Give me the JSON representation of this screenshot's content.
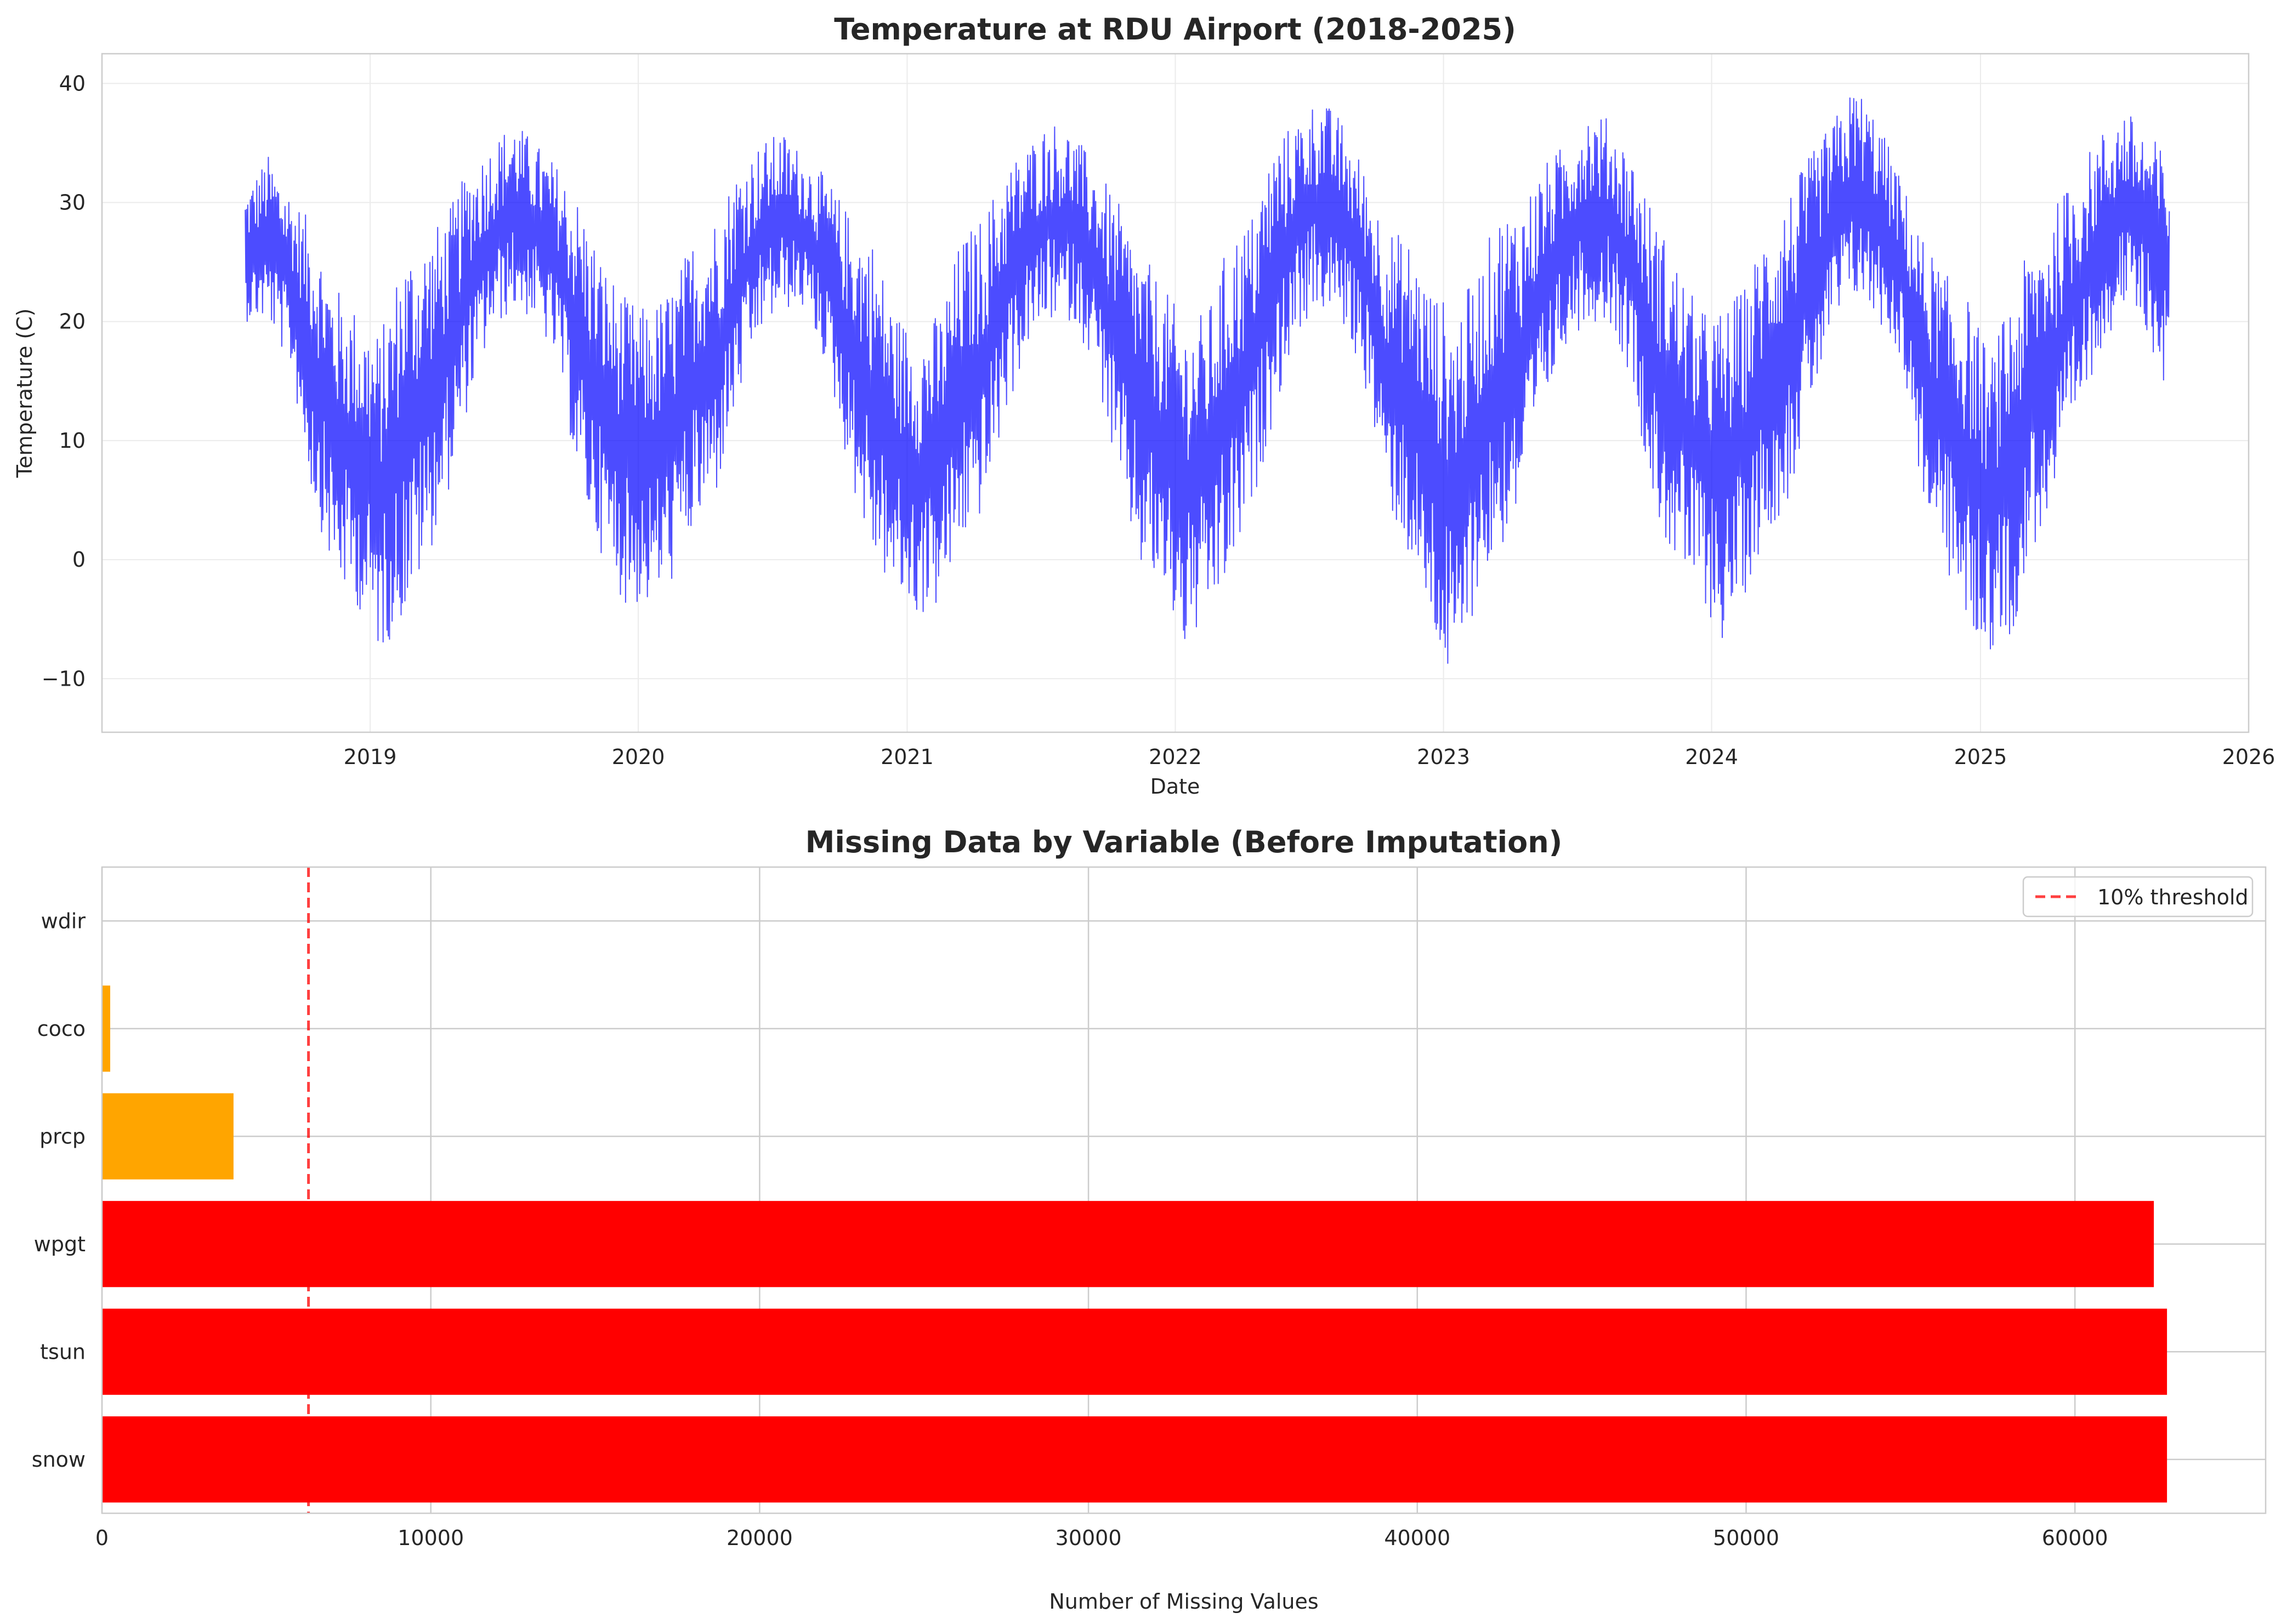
{
  "chart_data": [
    {
      "type": "line",
      "title": "Temperature at RDU Airport (2018-2025)",
      "xlabel": "Date",
      "ylabel": "Temperature (C)",
      "x_range": [
        "2018-01-01",
        "2026-01-01"
      ],
      "x_ticks": [
        "2019",
        "2020",
        "2021",
        "2022",
        "2023",
        "2024",
        "2025",
        "2026"
      ],
      "ylim": [
        -14.5,
        42.5
      ],
      "y_ticks": [
        -10,
        0,
        10,
        20,
        30,
        40
      ],
      "y_tick_labels": [
        "−10",
        "0",
        "10",
        "20",
        "30",
        "40"
      ],
      "grid": true,
      "series": [
        {
          "color": "#0000ff",
          "x": [
            "2018-07-15",
            "2018-08-15",
            "2018-09-15",
            "2018-10-15",
            "2018-11-15",
            "2018-12-15",
            "2019-01-15",
            "2019-02-15",
            "2019-03-15",
            "2019-04-15",
            "2019-05-15",
            "2019-06-15",
            "2019-07-15",
            "2019-08-15",
            "2019-09-15",
            "2019-10-15",
            "2019-11-15",
            "2019-12-15",
            "2020-01-15",
            "2020-02-15",
            "2020-03-15",
            "2020-04-15",
            "2020-05-15",
            "2020-06-15",
            "2020-07-15",
            "2020-08-15",
            "2020-09-15",
            "2020-10-15",
            "2020-11-15",
            "2020-12-15",
            "2021-01-15",
            "2021-02-15",
            "2021-03-15",
            "2021-04-15",
            "2021-05-15",
            "2021-06-15",
            "2021-07-15",
            "2021-08-15",
            "2021-09-15",
            "2021-10-15",
            "2021-11-15",
            "2021-12-15",
            "2022-01-15",
            "2022-02-15",
            "2022-03-15",
            "2022-04-15",
            "2022-05-15",
            "2022-06-15",
            "2022-07-15",
            "2022-08-15",
            "2022-09-15",
            "2022-10-15",
            "2022-11-15",
            "2022-12-15",
            "2023-01-15",
            "2023-02-15",
            "2023-03-15",
            "2023-04-15",
            "2023-05-15",
            "2023-06-15",
            "2023-07-15",
            "2023-08-15",
            "2023-09-15",
            "2023-10-15",
            "2023-11-15",
            "2023-12-15",
            "2024-01-15",
            "2024-02-15",
            "2024-03-15",
            "2024-04-15",
            "2024-05-15",
            "2024-06-15",
            "2024-07-15",
            "2024-08-15",
            "2024-09-15",
            "2024-10-15",
            "2024-11-15",
            "2024-12-15",
            "2025-01-15",
            "2025-02-15",
            "2025-03-15",
            "2025-04-15",
            "2025-05-15",
            "2025-06-15",
            "2025-07-15",
            "2025-08-15",
            "2025-09-15"
          ],
          "y_min": [
            20,
            20,
            16,
            5,
            -2,
            -4,
            -8,
            -5,
            -1,
            5,
            13,
            19,
            21,
            20,
            16,
            5,
            0,
            -4,
            -4,
            -2,
            2,
            5,
            13,
            19,
            21,
            21,
            16,
            7,
            0,
            -3,
            -5,
            -4,
            1,
            4,
            12,
            18,
            20,
            20,
            16,
            6,
            -1,
            -3,
            -8,
            -5,
            -2,
            4,
            12,
            19,
            21,
            20,
            15,
            5,
            0,
            -6,
            -12,
            -3,
            0,
            4,
            12,
            18,
            20,
            20,
            15,
            4,
            -1,
            -3,
            -7,
            -3,
            2,
            5,
            13,
            19,
            22,
            20,
            17,
            5,
            -1,
            -6,
            -8,
            -6,
            1,
            5,
            12,
            18,
            21,
            19,
            13
          ],
          "y_max": [
            31,
            34,
            31,
            28,
            23,
            21,
            19,
            26,
            27,
            29,
            33,
            35,
            37,
            35,
            33,
            30,
            25,
            22,
            21,
            23,
            27,
            29,
            33,
            35,
            36,
            34,
            32,
            29,
            27,
            21,
            19,
            21,
            27,
            29,
            33,
            35,
            37,
            36,
            33,
            30,
            26,
            23,
            20,
            21,
            27,
            29,
            35,
            37,
            39,
            37,
            33,
            28,
            27,
            23,
            21,
            24,
            29,
            30,
            33,
            35,
            38,
            37,
            34,
            29,
            25,
            21,
            21,
            23,
            28,
            31,
            34,
            37,
            40,
            37,
            32,
            27,
            24,
            22,
            17,
            23,
            27,
            30,
            33,
            36,
            38,
            36,
            34
          ]
        }
      ]
    },
    {
      "type": "bar",
      "orientation": "horizontal",
      "title": "Missing Data by Variable (Before Imputation)",
      "xlabel": "Number of Missing Values",
      "ylabel": "",
      "categories": [
        "snow",
        "tsun",
        "wpgt",
        "prcp",
        "coco",
        "wdir"
      ],
      "values": [
        62800,
        62800,
        62400,
        4000,
        250,
        0
      ],
      "bar_colors": [
        "#ff0000",
        "#ff0000",
        "#ff0000",
        "#ffa500",
        "#ffa500",
        "#ffa500"
      ],
      "xlim": [
        0,
        65800
      ],
      "x_ticks": [
        0,
        10000,
        20000,
        30000,
        40000,
        50000,
        60000
      ],
      "x_tick_labels": [
        "0",
        "10000",
        "20000",
        "30000",
        "40000",
        "50000",
        "60000"
      ],
      "grid": true,
      "threshold": {
        "value": 6280,
        "label": "10% threshold",
        "color": "#ff0000",
        "style": "dashed"
      },
      "legend": {
        "placement": "top-right",
        "entries": [
          "10% threshold"
        ]
      }
    }
  ]
}
